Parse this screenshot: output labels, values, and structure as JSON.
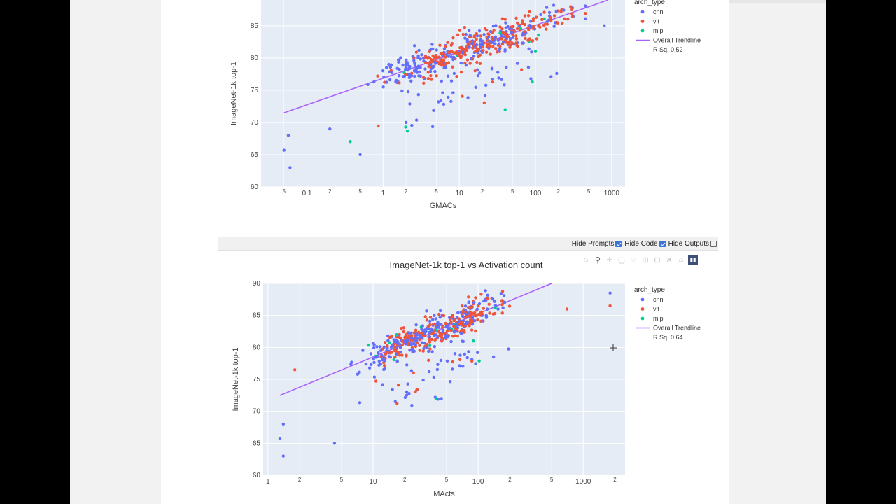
{
  "notebook": {
    "toggles": [
      {
        "label": "Hide Prompts",
        "checked": true
      },
      {
        "label": "Hide Code",
        "checked": true
      },
      {
        "label": "Hide Outputs",
        "checked": false
      }
    ]
  },
  "colors": {
    "cnn": "#636efa",
    "vit": "#ef553b",
    "mlp": "#00cc96",
    "trend": "#ab63fa",
    "plot_bg": "#e5ecf6"
  },
  "chart_data": [
    {
      "type": "scatter",
      "title": "",
      "xlabel": "GMACs",
      "ylabel": "ImageNet-1k top-1",
      "xscale": "log",
      "xlim": [
        0.025,
        1500
      ],
      "ylim": [
        60,
        89
      ],
      "x_ticks": [
        "5",
        "0.1",
        "2",
        "5",
        "1",
        "2",
        "5",
        "10",
        "2",
        "5",
        "100",
        "2",
        "5",
        "1000"
      ],
      "y_ticks": [
        "60",
        "65",
        "70",
        "75",
        "80",
        "85"
      ],
      "legend_title": "arch_type",
      "legend": [
        "cnn",
        "vit",
        "mlp",
        "Overall Trendline",
        "R Sq. 0.52"
      ],
      "trendline": {
        "x": [
          0.05,
          900
        ],
        "y": [
          71.5,
          89.0
        ]
      },
      "highlight_points": [
        {
          "series": "cnn",
          "x": 0.05,
          "y": 65.7
        },
        {
          "series": "cnn",
          "x": 0.06,
          "y": 63.0
        },
        {
          "series": "cnn",
          "x": 0.057,
          "y": 68.0
        },
        {
          "series": "cnn",
          "x": 0.2,
          "y": 69.0
        },
        {
          "series": "cnn",
          "x": 0.5,
          "y": 65.0
        },
        {
          "series": "cnn",
          "x": 2.0,
          "y": 70.0
        },
        {
          "series": "mlp",
          "x": 40,
          "y": 72.0
        },
        {
          "series": "mlp",
          "x": 100,
          "y": 81.0
        },
        {
          "series": "cnn",
          "x": 800,
          "y": 85.0
        },
        {
          "series": "vit",
          "x": 40,
          "y": 86.0
        },
        {
          "series": "vit",
          "x": 300,
          "y": 87.5
        }
      ]
    },
    {
      "type": "scatter",
      "title": "ImageNet-1k top-1 vs Activation count",
      "xlabel": "MActs",
      "ylabel": "ImageNet-1k top-1",
      "xscale": "log",
      "xlim": [
        0.9,
        2500
      ],
      "ylim": [
        60,
        90
      ],
      "x_ticks": [
        "1",
        "2",
        "5",
        "10",
        "2",
        "5",
        "100",
        "2",
        "5",
        "1000",
        "2"
      ],
      "y_ticks": [
        "60",
        "65",
        "70",
        "75",
        "80",
        "85",
        "90"
      ],
      "legend_title": "arch_type",
      "legend": [
        "cnn",
        "vit",
        "mlp",
        "Overall Trendline",
        "R Sq. 0.64"
      ],
      "trendline": {
        "x": [
          1.3,
          500
        ],
        "y": [
          72.5,
          90.0
        ]
      },
      "highlight_points": [
        {
          "series": "cnn",
          "x": 1.3,
          "y": 65.7
        },
        {
          "series": "cnn",
          "x": 1.4,
          "y": 63.0
        },
        {
          "series": "cnn",
          "x": 1.4,
          "y": 68.0
        },
        {
          "series": "vit",
          "x": 1.8,
          "y": 76.5
        },
        {
          "series": "cnn",
          "x": 4.3,
          "y": 65.0
        },
        {
          "series": "mlp",
          "x": 40,
          "y": 72.0
        },
        {
          "series": "mlp",
          "x": 90,
          "y": 81.0
        },
        {
          "series": "cnn",
          "x": 1800,
          "y": 88.5
        },
        {
          "series": "vit",
          "x": 1800,
          "y": 86.5
        },
        {
          "series": "vit",
          "x": 700,
          "y": 86.0
        }
      ]
    }
  ]
}
